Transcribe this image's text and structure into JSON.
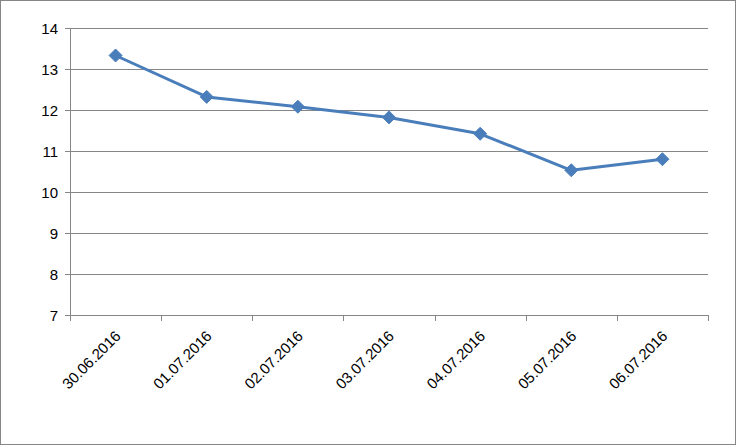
{
  "chart_data": {
    "type": "line",
    "categories": [
      "30.06.2016",
      "01.07.2016",
      "02.07.2016",
      "03.07.2016",
      "04.07.2016",
      "05.07.2016",
      "06.07.2016"
    ],
    "values": [
      13.33,
      12.32,
      12.08,
      11.82,
      11.42,
      10.53,
      10.8
    ],
    "color": "#4a7ebb",
    "marker": "diamond",
    "line_style": "solid",
    "ylim": [
      7,
      14
    ],
    "yticks": [
      7,
      8,
      9,
      10,
      11,
      12,
      13,
      14
    ],
    "grid": true
  }
}
